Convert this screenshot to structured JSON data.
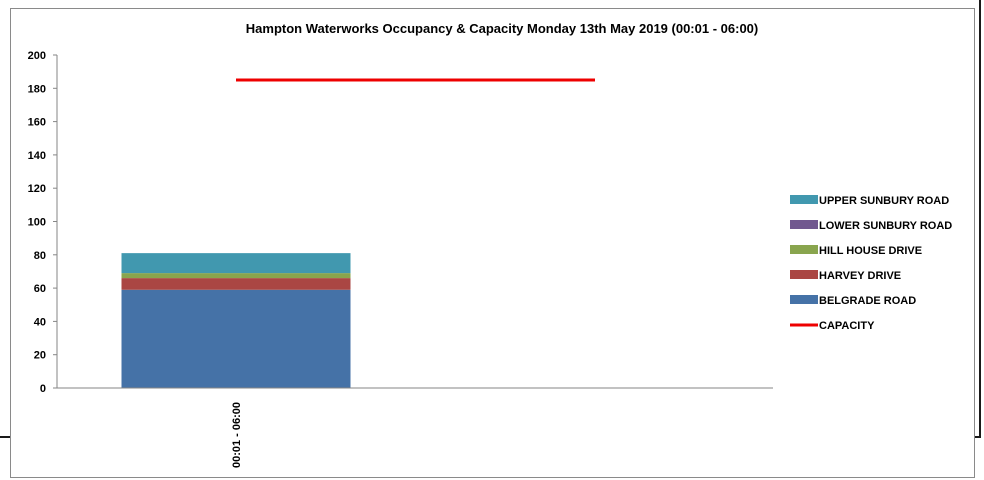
{
  "chart_data": {
    "type": "bar",
    "stacked": true,
    "title": "Hampton Waterworks Occupancy & Capacity Monday 13th May 2019 (00:01 - 06:00)",
    "categories": [
      "00:01 - 06:00"
    ],
    "ylim": [
      0,
      200
    ],
    "yticks": [
      0,
      20,
      40,
      60,
      80,
      100,
      120,
      140,
      160,
      180,
      200
    ],
    "grid": false,
    "legend_position": "right",
    "series": [
      {
        "name": "BELGRADE ROAD",
        "values": [
          59
        ],
        "color": "#4572A7"
      },
      {
        "name": "HARVEY DRIVE",
        "values": [
          7
        ],
        "color": "#AA4643"
      },
      {
        "name": "HILL HOUSE DRIVE",
        "values": [
          3
        ],
        "color": "#89A54E"
      },
      {
        "name": "LOWER SUNBURY ROAD",
        "values": [
          0
        ],
        "color": "#71588F"
      },
      {
        "name": "UPPER SUNBURY ROAD",
        "values": [
          12
        ],
        "color": "#4198AF"
      }
    ],
    "line_series": [
      {
        "name": "CAPACITY",
        "value": 185,
        "color": "#EE0000"
      }
    ],
    "legend_order": [
      "UPPER SUNBURY ROAD",
      "LOWER SUNBURY ROAD",
      "HILL HOUSE DRIVE",
      "HARVEY DRIVE",
      "BELGRADE ROAD",
      "CAPACITY"
    ]
  }
}
